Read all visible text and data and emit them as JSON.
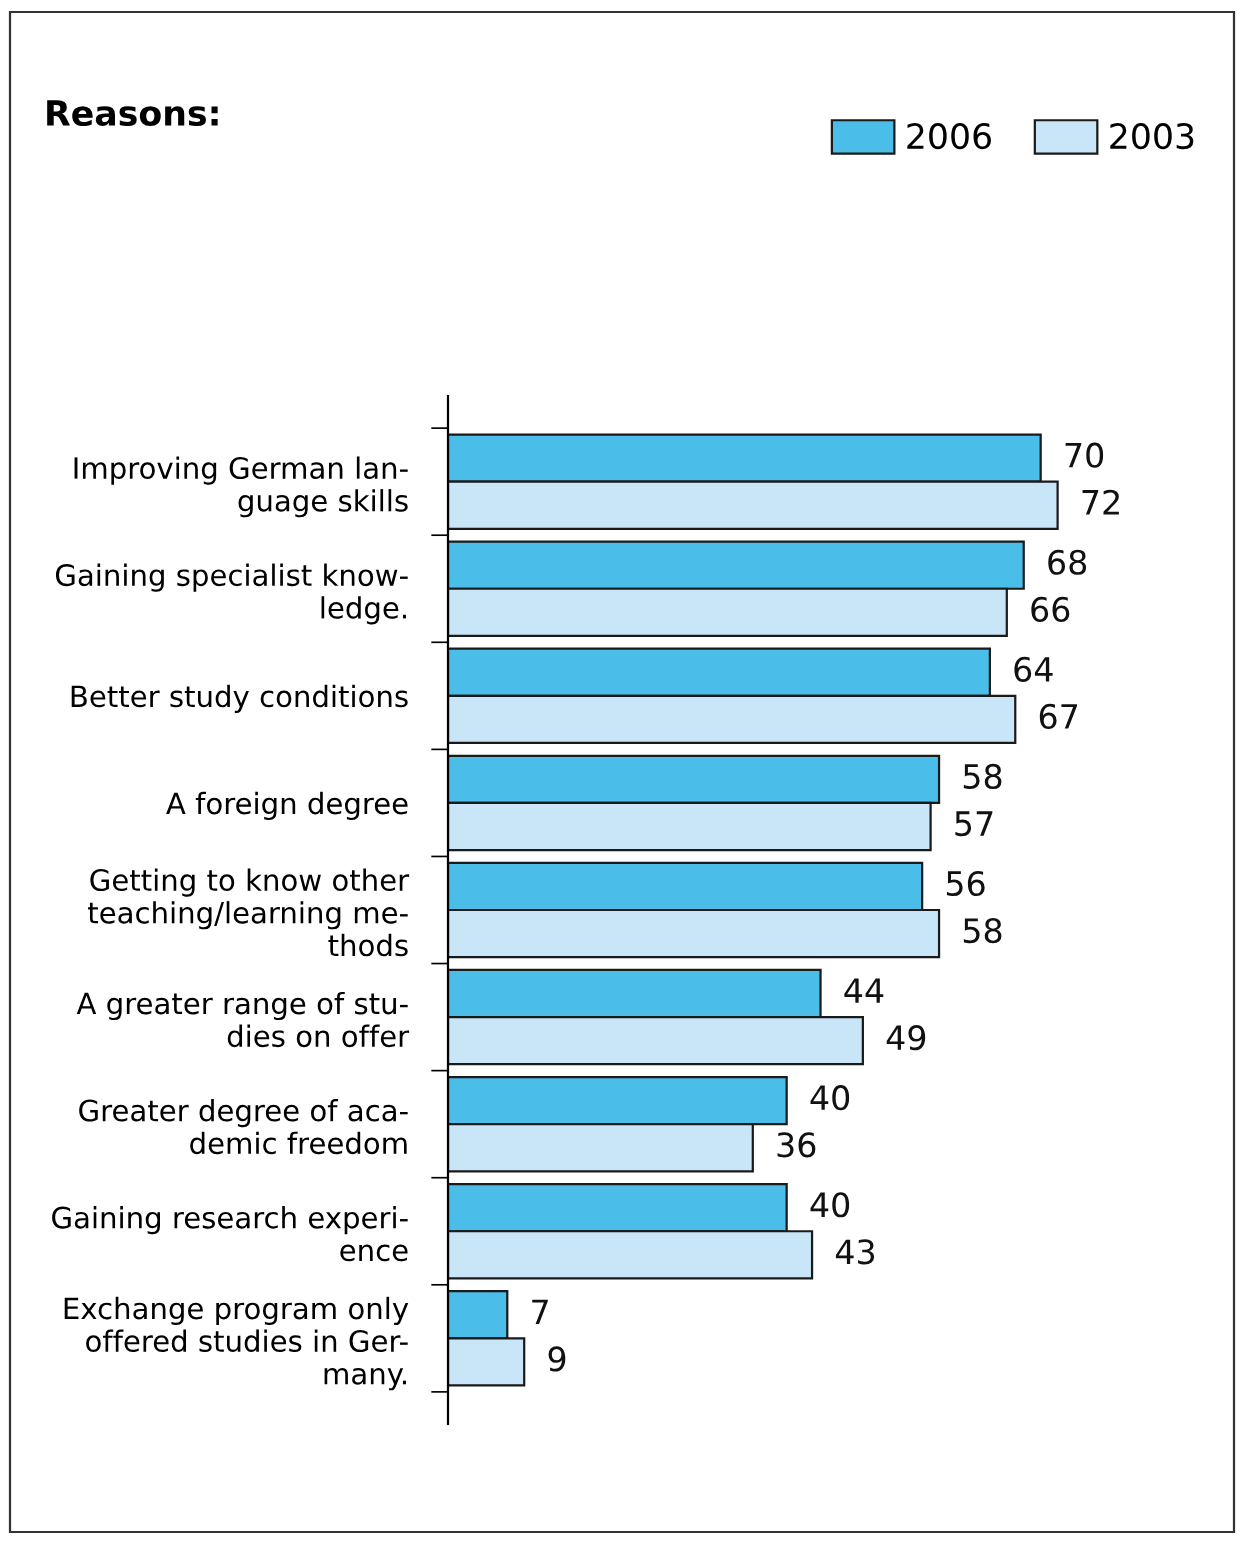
{
  "chart_data": {
    "type": "bar",
    "orientation": "horizontal",
    "title": "Reasons:",
    "categories": [
      "Improving German lan-\nguage skills",
      "Gaining specialist know-\nledge.",
      "Better study conditions",
      "A foreign degree",
      "Getting to know other\nteaching/learning me-\nthods",
      "A greater range of stu-\ndies on offer",
      "Greater degree of aca-\ndemic freedom",
      "Gaining research experi-\nence",
      "Exchange program only\noffered studies in Ger-\nmany."
    ],
    "series": [
      {
        "name": "2006",
        "color": "#4bbde9",
        "values": [
          70,
          68,
          64,
          58,
          56,
          44,
          40,
          40,
          7
        ]
      },
      {
        "name": "2003",
        "color": "#c8e6f8",
        "values": [
          72,
          66,
          67,
          57,
          58,
          49,
          36,
          43,
          9
        ]
      }
    ],
    "data_labels": true,
    "legend": "top right",
    "grid": false
  }
}
